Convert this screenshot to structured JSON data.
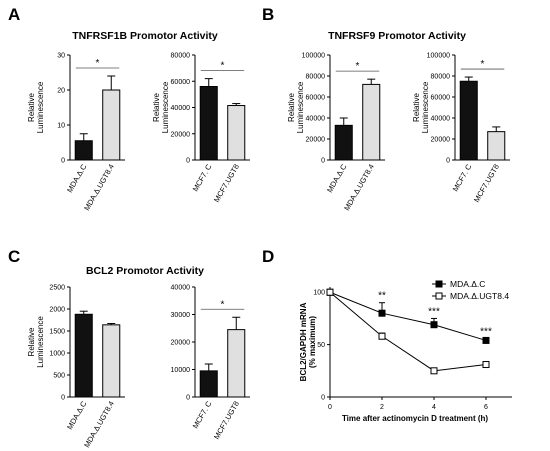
{
  "chart_data": [
    {
      "panel": "A",
      "type": "bar",
      "title": "TNFRSF1B Promotor Activity",
      "ylabel": "Relative Luminescence",
      "ylim": [
        0,
        30
      ],
      "yticks": [
        0,
        10,
        20,
        30
      ],
      "categories": [
        "MDA.Δ.C",
        "MDA.Δ.UGT8.4"
      ],
      "values": [
        5.5,
        20
      ],
      "errors": [
        2,
        4
      ],
      "colors": [
        "#111111",
        "#e0e0e0"
      ],
      "significance": "*"
    },
    {
      "panel": "A",
      "type": "bar",
      "title": "",
      "ylabel": "Relative Luminescence",
      "ylim": [
        0,
        80000
      ],
      "yticks": [
        0,
        20000,
        40000,
        60000,
        80000
      ],
      "categories": [
        "MCF7. C",
        "MCF7.UGT8"
      ],
      "values": [
        56000,
        41500
      ],
      "errors": [
        6000,
        1500
      ],
      "colors": [
        "#111111",
        "#e0e0e0"
      ],
      "significance": "*"
    },
    {
      "panel": "B",
      "type": "bar",
      "title": "TNFRSF9 Promotor Activity",
      "ylabel": "Relative Luminescence",
      "ylim": [
        0,
        100000
      ],
      "yticks": [
        0,
        20000,
        40000,
        60000,
        80000,
        100000
      ],
      "categories": [
        "MDA.Δ.C",
        "MDA.Δ.UGT8.4"
      ],
      "values": [
        33000,
        72000
      ],
      "errors": [
        7000,
        5000
      ],
      "colors": [
        "#111111",
        "#e0e0e0"
      ],
      "significance": "*"
    },
    {
      "panel": "B",
      "type": "bar",
      "title": "",
      "ylabel": "Relative Luminescence",
      "ylim": [
        0,
        100000
      ],
      "yticks": [
        0,
        20000,
        40000,
        60000,
        80000,
        100000
      ],
      "categories": [
        "MCF7. C",
        "MCF7.UGT8"
      ],
      "values": [
        75000,
        27000
      ],
      "errors": [
        4000,
        4500
      ],
      "colors": [
        "#111111",
        "#e0e0e0"
      ],
      "significance": "*"
    },
    {
      "panel": "C",
      "type": "bar",
      "title": "BCL2 Promotor Activity",
      "ylabel": "Relative Luminescence",
      "ylim": [
        0,
        2500
      ],
      "yticks": [
        0,
        500,
        1000,
        1500,
        2000,
        2500
      ],
      "categories": [
        "MDA.Δ.C",
        "MDA.Δ.UGT8.4"
      ],
      "values": [
        1880,
        1640
      ],
      "errors": [
        70,
        30
      ],
      "colors": [
        "#111111",
        "#e0e0e0"
      ],
      "significance": ""
    },
    {
      "panel": "C",
      "type": "bar",
      "title": "",
      "ylabel": "",
      "ylim": [
        0,
        40000
      ],
      "yticks": [
        0,
        10000,
        20000,
        30000,
        40000
      ],
      "categories": [
        "MCF7. C",
        "MCF7.UGT8"
      ],
      "values": [
        9500,
        24500
      ],
      "errors": [
        2500,
        4500
      ],
      "colors": [
        "#111111",
        "#e0e0e0"
      ],
      "significance": "*"
    },
    {
      "panel": "D",
      "type": "line",
      "title": "",
      "ylabel": "BCL2/GAPDH mRNA (% maximum)",
      "xlabel": "Time after actinomycin D treatment (h)",
      "xlim": [
        0,
        7
      ],
      "ylim": [
        0,
        105
      ],
      "xticks": [
        0,
        2,
        4,
        6
      ],
      "yticks": [
        0,
        50,
        100
      ],
      "x": [
        0,
        2,
        4,
        6
      ],
      "series": [
        {
          "name": "MDA.Δ.C",
          "values": [
            100,
            80,
            69,
            54
          ],
          "errors": [
            0,
            10,
            6,
            2
          ],
          "marker": "filled-square"
        },
        {
          "name": "MDA.Δ.UGT8.4",
          "values": [
            100,
            58,
            25,
            31
          ],
          "errors": [
            0,
            3,
            2,
            2
          ],
          "marker": "open-square"
        }
      ],
      "annotations": [
        {
          "x": 2,
          "text": "**"
        },
        {
          "x": 4,
          "text": "***"
        },
        {
          "x": 6,
          "text": "***"
        }
      ],
      "legend_position": "top-right"
    }
  ]
}
